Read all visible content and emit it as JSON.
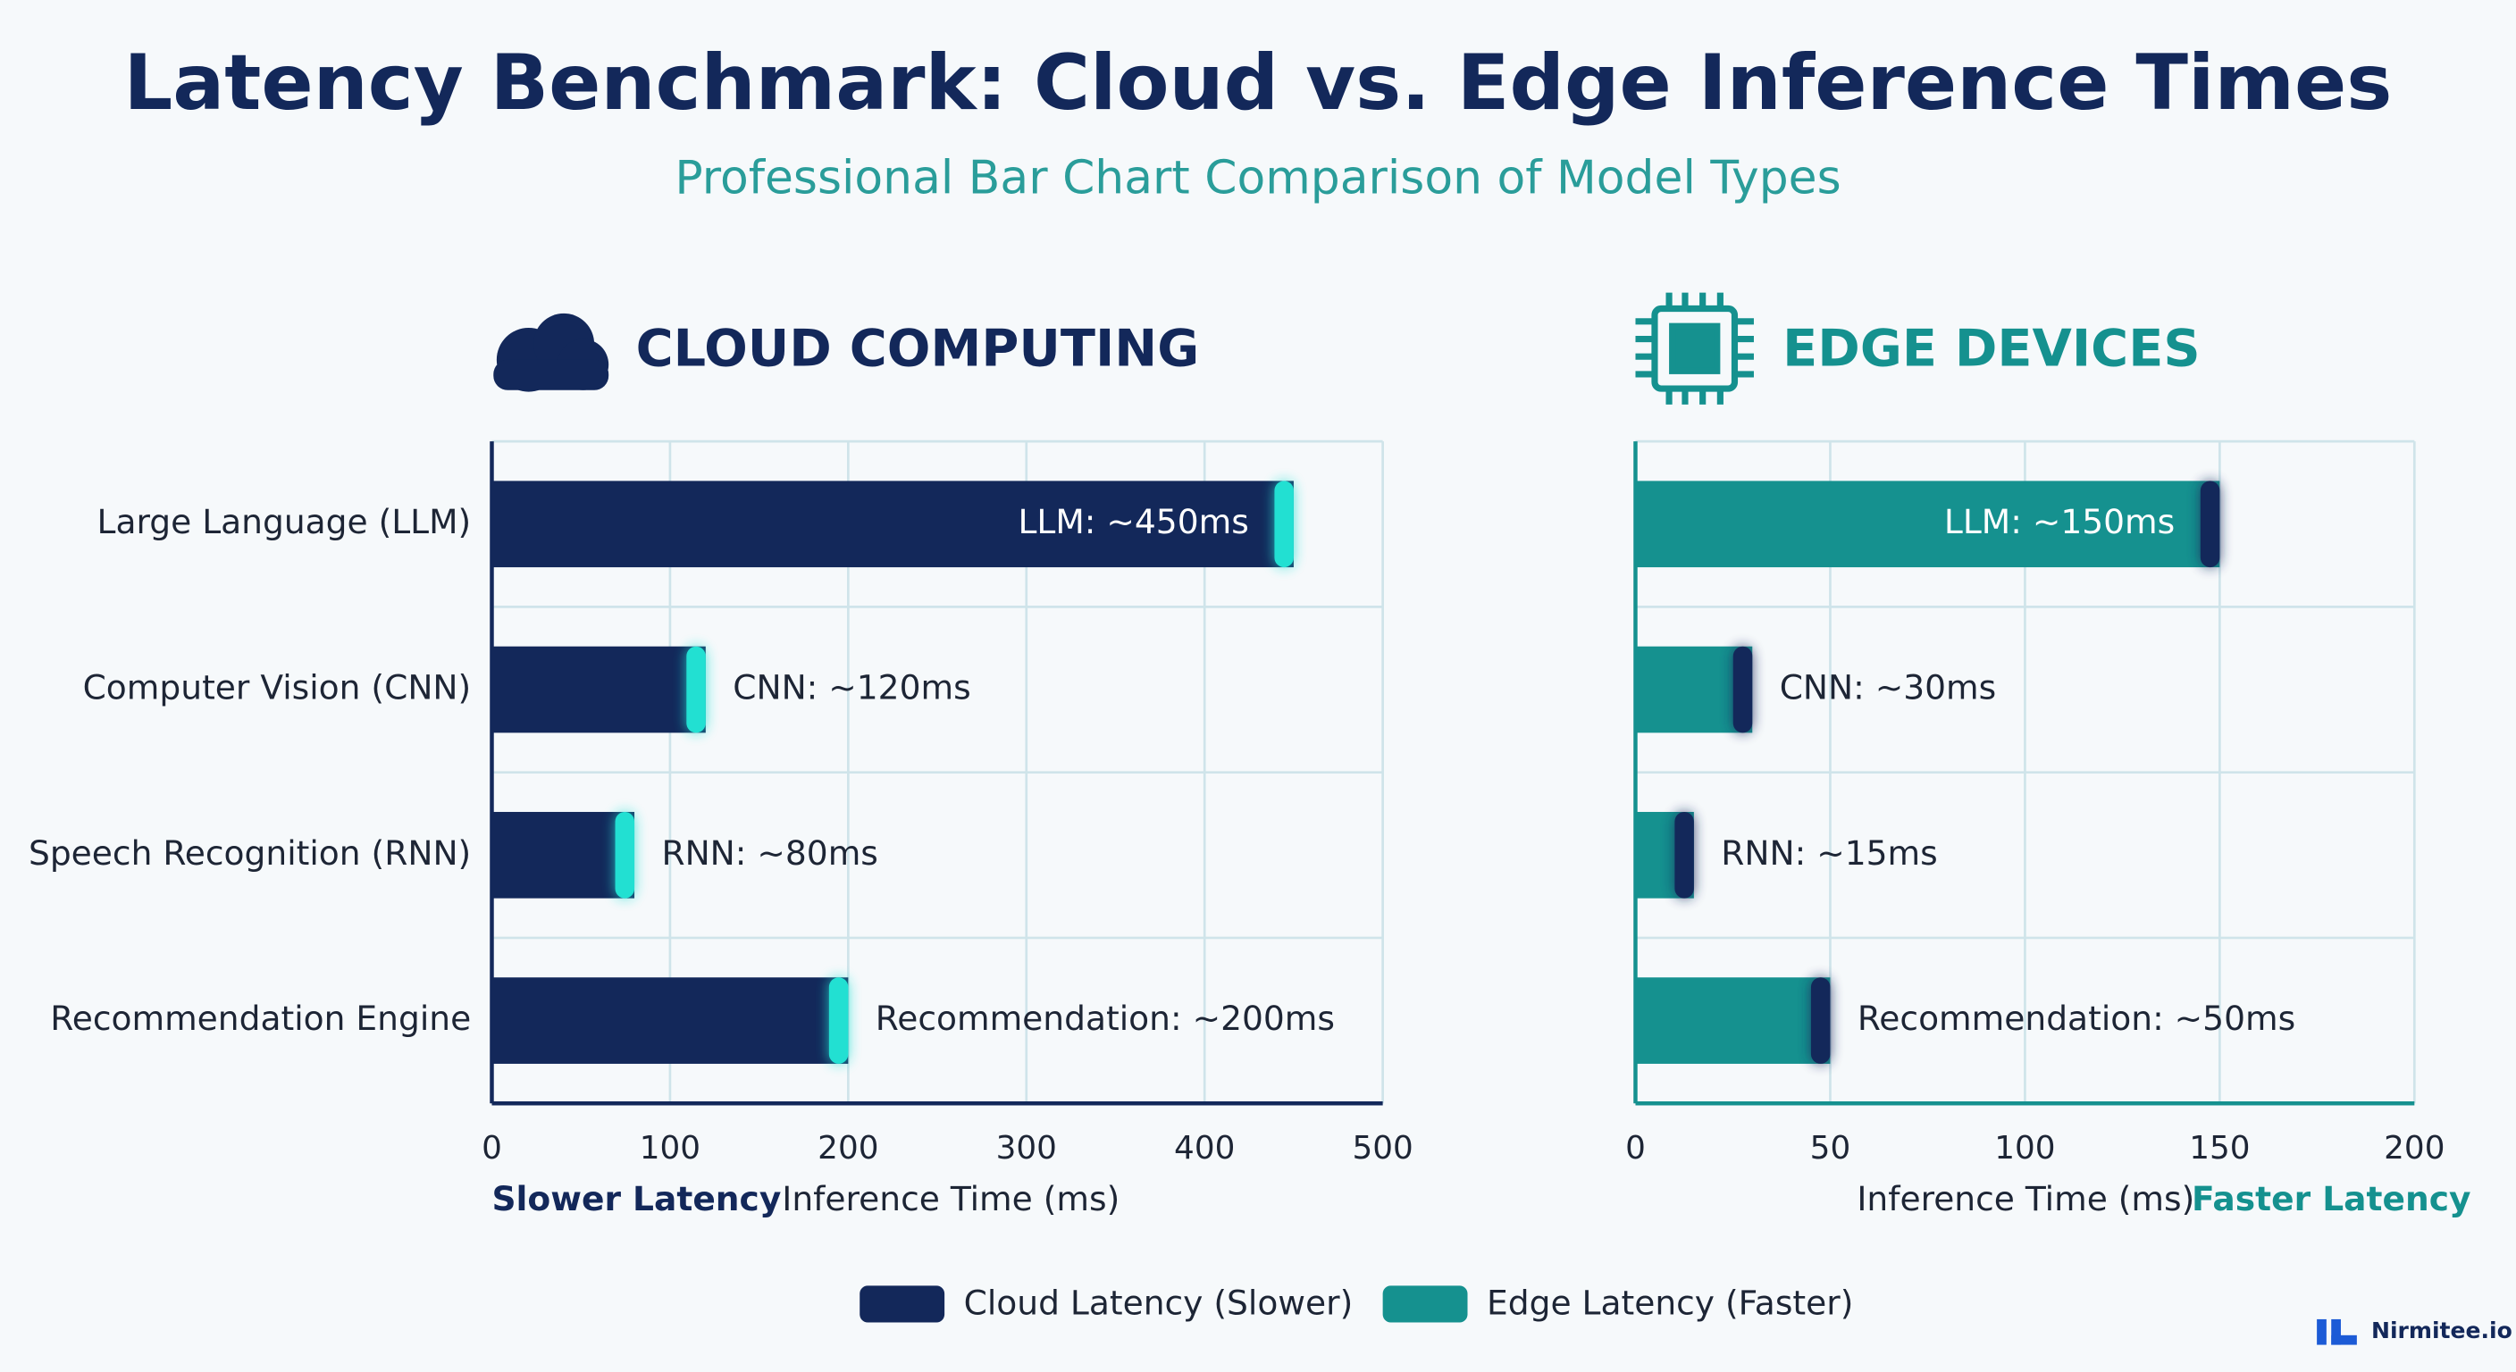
{
  "title": "Latency Benchmark: Cloud vs. Edge Inference Times",
  "subtitle": "Professional Bar Chart Comparison of Model Types",
  "brand": "Nirmitee.io",
  "chart_data": [
    {
      "type": "bar",
      "orientation": "horizontal",
      "title": "CLOUD COMPUTING",
      "categories": [
        "Large Language (LLM)",
        "Computer Vision (CNN)",
        "Speech Recognition (RNN)",
        "Recommendation Engine"
      ],
      "series": [
        {
          "name": "Cloud Latency (Slower)",
          "color": "#13285a",
          "cap_color": "#22e0d2",
          "values": [
            450,
            120,
            80,
            200
          ],
          "value_labels": [
            "LLM: ~450ms",
            "CNN: ~120ms",
            "RNN: ~80ms",
            "Recommendation: ~200ms"
          ]
        }
      ],
      "xlim": [
        0,
        500
      ],
      "xticks": [
        0,
        100,
        200,
        300,
        400,
        500
      ],
      "xlabel": "Inference Time (ms)",
      "annotation": "Slower Latency",
      "grid": true
    },
    {
      "type": "bar",
      "orientation": "horizontal",
      "title": "EDGE DEVICES",
      "series": [
        {
          "name": "Edge Latency (Faster)",
          "color": "#15918f",
          "cap_color": "#13285a",
          "values": [
            150,
            30,
            15,
            50
          ],
          "value_labels": [
            "LLM: ~150ms",
            "CNN: ~30ms",
            "RNN: ~15ms",
            "Recommendation: ~50ms"
          ]
        }
      ],
      "xlim": [
        0,
        200
      ],
      "xticks": [
        0,
        50,
        100,
        150,
        200
      ],
      "xlabel": "Inference Time (ms)",
      "annotation": "Faster Latency",
      "grid": true
    }
  ]
}
